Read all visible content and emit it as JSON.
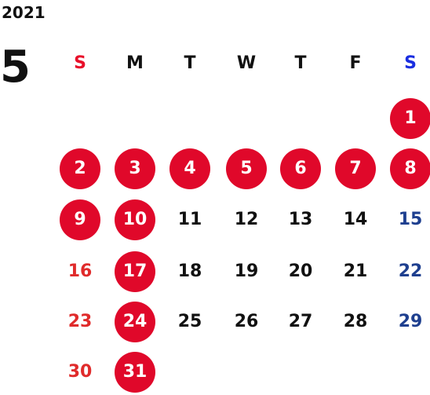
{
  "calendar": {
    "year": "2021",
    "month": "5",
    "weekdays": [
      "S",
      "M",
      "T",
      "W",
      "T",
      "F",
      "S"
    ],
    "first_weekday_index": 6,
    "days": [
      {
        "label": "1",
        "kind": "holiday"
      },
      {
        "label": "2",
        "kind": "holiday"
      },
      {
        "label": "3",
        "kind": "holiday"
      },
      {
        "label": "4",
        "kind": "holiday"
      },
      {
        "label": "5",
        "kind": "holiday"
      },
      {
        "label": "6",
        "kind": "holiday"
      },
      {
        "label": "7",
        "kind": "holiday"
      },
      {
        "label": "8",
        "kind": "holiday"
      },
      {
        "label": "9",
        "kind": "holiday"
      },
      {
        "label": "10",
        "kind": "holiday"
      },
      {
        "label": "11",
        "kind": "weekday"
      },
      {
        "label": "12",
        "kind": "weekday"
      },
      {
        "label": "13",
        "kind": "weekday"
      },
      {
        "label": "14",
        "kind": "weekday"
      },
      {
        "label": "15",
        "kind": "saturday"
      },
      {
        "label": "16",
        "kind": "sunday"
      },
      {
        "label": "17",
        "kind": "holiday"
      },
      {
        "label": "18",
        "kind": "weekday"
      },
      {
        "label": "19",
        "kind": "weekday"
      },
      {
        "label": "20",
        "kind": "weekday"
      },
      {
        "label": "21",
        "kind": "weekday"
      },
      {
        "label": "22",
        "kind": "saturday"
      },
      {
        "label": "23",
        "kind": "sunday"
      },
      {
        "label": "24",
        "kind": "holiday"
      },
      {
        "label": "25",
        "kind": "weekday"
      },
      {
        "label": "26",
        "kind": "weekday"
      },
      {
        "label": "27",
        "kind": "weekday"
      },
      {
        "label": "28",
        "kind": "weekday"
      },
      {
        "label": "29",
        "kind": "saturday"
      },
      {
        "label": "30",
        "kind": "sunday"
      },
      {
        "label": "31",
        "kind": "holiday"
      }
    ]
  },
  "colors": {
    "text": "#111111",
    "sunday_header": "#e8102a",
    "saturday_header": "#1a2ee0",
    "holiday_circle": "#e0082a",
    "sunday_text": "#e02b2b",
    "saturday_text": "#1e3f8f"
  }
}
